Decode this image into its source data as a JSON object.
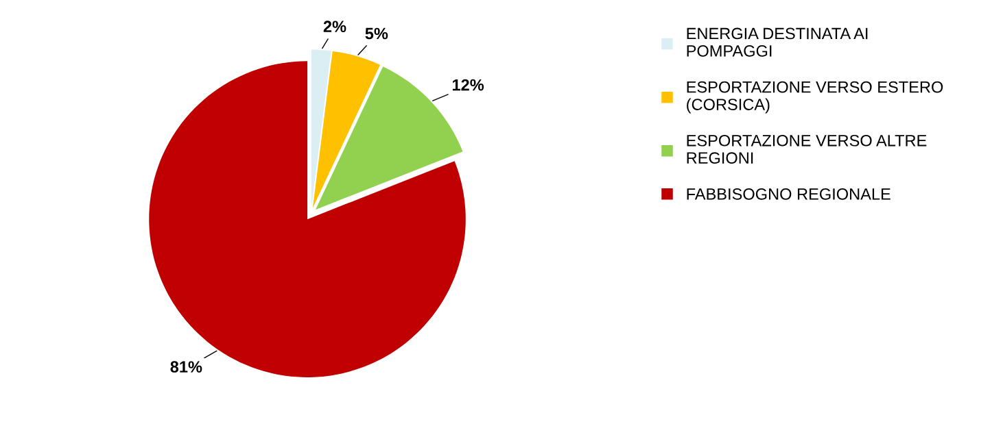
{
  "chart_data": {
    "type": "pie",
    "categories": [
      "ENERGIA DESTINATA AI POMPAGGI",
      "ESPORTAZIONE VERSO ESTERO (CORSICA)",
      "ESPORTAZIONE VERSO ALTRE REGIONI",
      "FABBISOGNO REGIONALE"
    ],
    "values": [
      2,
      5,
      12,
      81
    ],
    "colors": [
      "#dbeef3",
      "#ffc000",
      "#92d050",
      "#c00000"
    ],
    "value_labels": [
      "2%",
      "5%",
      "12%",
      "81%"
    ],
    "legend": "right"
  }
}
